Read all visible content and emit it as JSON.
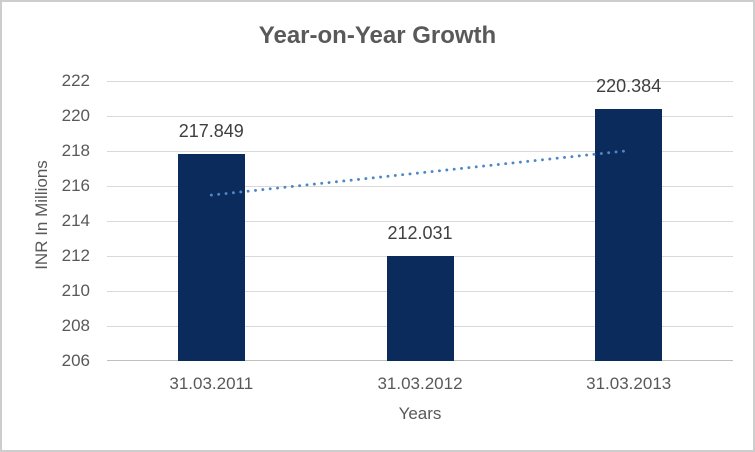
{
  "chart_data": {
    "type": "bar",
    "title": "Year-on-Year Growth",
    "xlabel": "Years",
    "ylabel": "INR In Millions",
    "categories": [
      "31.03.2011",
      "31.03.2012",
      "31.03.2013"
    ],
    "values": [
      217.849,
      212.031,
      220.384
    ],
    "data_labels": [
      "217.849",
      "212.031",
      "220.384"
    ],
    "ylim": [
      206,
      222
    ],
    "yticks": [
      222,
      220,
      218,
      216,
      214,
      212,
      210,
      208,
      206
    ],
    "grid": true,
    "legend": false,
    "trendline": {
      "type": "linear",
      "style": "dotted",
      "start_value": 215.48,
      "end_value": 218.02
    },
    "colors": {
      "bar": "#0c2b5d",
      "trendline": "#4e87c5",
      "gridline": "#d9d9d9",
      "axis_line": "#c0c0c0",
      "title_text": "#595959",
      "axis_text": "#595959",
      "data_label_text": "#3f3f3f",
      "frame_border": "#cdcdcd",
      "background": "#ffffff"
    }
  }
}
